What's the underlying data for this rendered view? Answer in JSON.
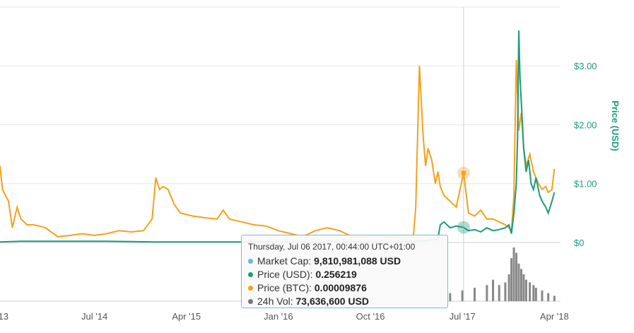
{
  "chart_data": {
    "type": "line",
    "title": "",
    "y_axis": {
      "label": "Price (USD)",
      "ticks": [
        "$0",
        "$1.00",
        "$2.00",
        "$3.00"
      ],
      "tick_values": [
        0,
        1,
        2,
        3
      ],
      "ylim": [
        0,
        4.0
      ],
      "position": "right"
    },
    "x_axis": {
      "ticks": [
        "'13",
        "Jul '14",
        "Apr '15",
        "Jan '16",
        "Oct '16",
        "Jul '17",
        "Apr '18"
      ],
      "tick_values": [
        2013.75,
        2014.5,
        2015.25,
        2016.0,
        2016.75,
        2017.5,
        2018.25
      ]
    },
    "xlim": [
      2013.73,
      2018.3
    ],
    "grid": true,
    "series": [
      {
        "name": "Price (USD)",
        "color": "#1a9c7b",
        "x": [
          2013.73,
          2013.9,
          2014.2,
          2014.6,
          2015.0,
          2015.5,
          2016.0,
          2016.5,
          2016.9,
          2017.1,
          2017.2,
          2017.3,
          2017.32,
          2017.35,
          2017.4,
          2017.45,
          2017.51,
          2017.55,
          2017.6,
          2017.65,
          2017.7,
          2017.75,
          2017.8,
          2017.85,
          2017.88,
          2017.9,
          2017.92,
          2017.94,
          2017.95,
          2017.96,
          2017.97,
          2017.98,
          2018.0,
          2018.02,
          2018.04,
          2018.06,
          2018.08,
          2018.1,
          2018.13,
          2018.15,
          2018.18,
          2018.2,
          2018.23,
          2018.25
        ],
        "y": [
          0.01,
          0.02,
          0.02,
          0.02,
          0.01,
          0.01,
          0.01,
          0.01,
          0.01,
          0.02,
          0.03,
          0.06,
          0.3,
          0.35,
          0.25,
          0.28,
          0.256,
          0.2,
          0.22,
          0.18,
          0.25,
          0.2,
          0.22,
          0.25,
          0.3,
          0.15,
          0.5,
          1.0,
          1.8,
          3.6,
          2.8,
          2.4,
          1.6,
          1.2,
          1.4,
          1.0,
          0.9,
          1.1,
          0.8,
          0.7,
          0.6,
          0.5,
          0.7,
          0.85
        ]
      },
      {
        "name": "Price (BTC)",
        "color": "#f4a11a",
        "x": [
          2013.73,
          2013.75,
          2013.8,
          2013.83,
          2013.87,
          2013.9,
          2013.95,
          2014.0,
          2014.05,
          2014.1,
          2014.2,
          2014.3,
          2014.4,
          2014.5,
          2014.6,
          2014.7,
          2014.8,
          2014.9,
          2014.97,
          2015.0,
          2015.03,
          2015.06,
          2015.1,
          2015.15,
          2015.2,
          2015.3,
          2015.4,
          2015.5,
          2015.55,
          2015.6,
          2015.7,
          2015.8,
          2015.9,
          2016.0,
          2016.1,
          2016.2,
          2016.3,
          2016.4,
          2016.5,
          2016.6,
          2016.7,
          2016.8,
          2016.9,
          2017.0,
          2017.05,
          2017.1,
          2017.12,
          2017.15,
          2017.18,
          2017.2,
          2017.22,
          2017.25,
          2017.28,
          2017.3,
          2017.32,
          2017.35,
          2017.4,
          2017.45,
          2017.51,
          2017.55,
          2017.6,
          2017.65,
          2017.7,
          2017.75,
          2017.8,
          2017.85,
          2017.88,
          2017.9,
          2017.92,
          2017.94,
          2017.96,
          2017.98,
          2018.0,
          2018.02,
          2018.05,
          2018.08,
          2018.1,
          2018.12,
          2018.15,
          2018.18,
          2018.2,
          2018.23,
          2018.25
        ],
        "y": [
          1.3,
          0.9,
          0.7,
          0.25,
          0.6,
          0.4,
          0.3,
          0.3,
          0.28,
          0.25,
          0.1,
          0.12,
          0.15,
          0.12,
          0.15,
          0.2,
          0.18,
          0.2,
          0.4,
          1.1,
          0.9,
          0.95,
          0.9,
          0.65,
          0.5,
          0.45,
          0.42,
          0.4,
          0.55,
          0.4,
          0.35,
          0.3,
          0.28,
          0.2,
          0.15,
          0.1,
          0.2,
          0.25,
          0.2,
          0.1,
          0.1,
          0.12,
          0.1,
          0.08,
          0.09,
          0.1,
          0.6,
          3.0,
          1.8,
          1.3,
          1.6,
          1.4,
          1.0,
          1.2,
          0.95,
          0.8,
          0.7,
          0.6,
          1.18,
          0.5,
          0.45,
          0.55,
          0.4,
          0.4,
          0.35,
          0.3,
          0.25,
          0.2,
          0.8,
          3.1,
          1.9,
          2.2,
          1.6,
          1.3,
          1.5,
          1.2,
          1.1,
          1.0,
          0.9,
          0.95,
          0.85,
          0.9,
          1.25
        ]
      }
    ],
    "volume": {
      "name": "24h Vol",
      "color": "#888888",
      "x": [
        2017.4,
        2017.5,
        2017.6,
        2017.7,
        2017.75,
        2017.8,
        2017.85,
        2017.88,
        2017.9,
        2017.92,
        2017.94,
        2017.96,
        2017.98,
        2018.0,
        2018.02,
        2018.05,
        2018.08,
        2018.1,
        2018.15,
        2018.2,
        2018.25
      ],
      "y": [
        0.15,
        0.2,
        0.25,
        0.3,
        0.4,
        0.3,
        0.35,
        0.5,
        0.8,
        1.0,
        0.9,
        0.7,
        0.6,
        0.5,
        0.4,
        0.35,
        0.3,
        0.25,
        0.2,
        0.15,
        0.1
      ]
    },
    "crosshair_x": 2017.51,
    "legend": "none"
  },
  "tooltip": {
    "header": "Thursday, Jul 06 2017, 00:44:00 UTC+01:00",
    "rows": [
      {
        "label": "Market Cap:",
        "value": "9,810,981,088 USD",
        "color": "#6cb6e0"
      },
      {
        "label": "Price (USD):",
        "value": "0.256219",
        "color": "#1a9c7b"
      },
      {
        "label": "Price (BTC):",
        "value": "0.00009876",
        "color": "#f4a11a"
      },
      {
        "label": "24h Vol:",
        "value": "73,636,600 USD",
        "color": "#777777"
      }
    ]
  }
}
